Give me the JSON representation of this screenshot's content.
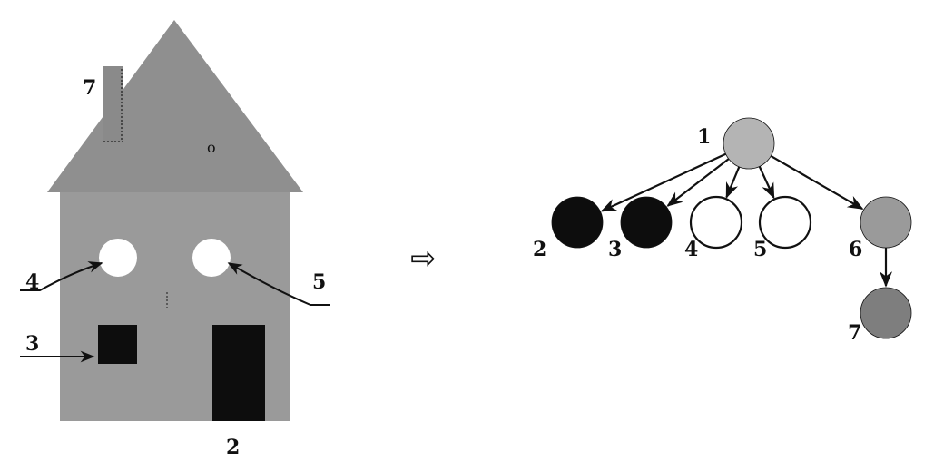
{
  "colors": {
    "gray": "#9a9a9a",
    "gray_light": "#b4b4b4",
    "gray_dark": "#7e7e7e",
    "black": "#0d0d0d",
    "white": "#ffffff",
    "stroke": "#111111"
  },
  "house": {
    "labels": {
      "chimney": "7",
      "window_left": "4",
      "window_right": "5",
      "square_window": "3",
      "door": "2",
      "roof_mark": "o"
    }
  },
  "transform_arrow": "⇨",
  "tree": {
    "nodes": [
      {
        "id": "1",
        "label": "1",
        "fill": "gray_light"
      },
      {
        "id": "2",
        "label": "2",
        "fill": "black"
      },
      {
        "id": "3",
        "label": "3",
        "fill": "black"
      },
      {
        "id": "4",
        "label": "4",
        "fill": "white"
      },
      {
        "id": "5",
        "label": "5",
        "fill": "white"
      },
      {
        "id": "6",
        "label": "6",
        "fill": "gray"
      },
      {
        "id": "7",
        "label": "7",
        "fill": "gray_dark"
      }
    ],
    "edges": [
      {
        "from": "1",
        "to": "2"
      },
      {
        "from": "1",
        "to": "3"
      },
      {
        "from": "1",
        "to": "4"
      },
      {
        "from": "1",
        "to": "5"
      },
      {
        "from": "1",
        "to": "6"
      },
      {
        "from": "6",
        "to": "7"
      }
    ]
  }
}
